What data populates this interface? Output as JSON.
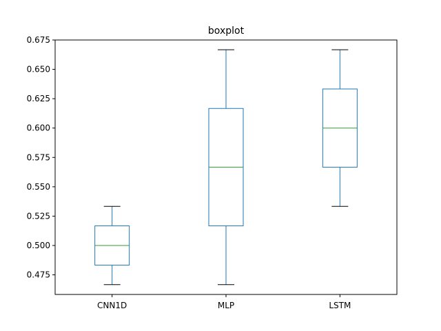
{
  "chart_data": {
    "type": "boxplot",
    "title": "boxplot",
    "xlabel": "",
    "ylabel": "",
    "categories": [
      "CNN1D",
      "MLP",
      "LSTM"
    ],
    "boxes": [
      {
        "category": "CNN1D",
        "whislo": 0.4667,
        "q1": 0.4833,
        "med": 0.5,
        "q3": 0.5167,
        "whishi": 0.5333
      },
      {
        "category": "MLP",
        "whislo": 0.4667,
        "q1": 0.5167,
        "med": 0.5667,
        "q3": 0.6167,
        "whishi": 0.6667
      },
      {
        "category": "LSTM",
        "whislo": 0.5333,
        "q1": 0.5667,
        "med": 0.6,
        "q3": 0.6333,
        "whishi": 0.6667
      }
    ],
    "ylim": [
      0.4583,
      0.675
    ],
    "yticks": [
      "0.475",
      "0.500",
      "0.525",
      "0.550",
      "0.575",
      "0.600",
      "0.625",
      "0.650",
      "0.675"
    ],
    "grid": false,
    "colors": {
      "box": "#1f77b4",
      "median": "#2ca02c",
      "cap": "#000000"
    }
  }
}
